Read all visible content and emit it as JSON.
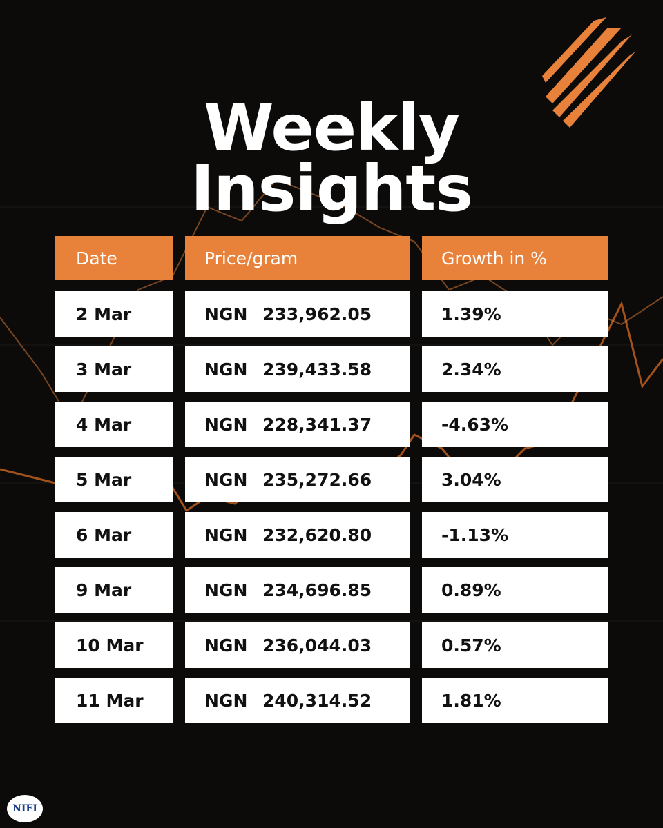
{
  "header": {
    "title_lines": [
      "Weekly",
      "Insights"
    ]
  },
  "table": {
    "columns": [
      "Date",
      "Price/gram",
      "Growth in %"
    ],
    "rows": [
      [
        "2 Mar",
        "NGN",
        "233,962.05",
        "1.39%"
      ],
      [
        "3 Mar",
        "NGN",
        "239,433.58",
        "2.34%"
      ],
      [
        "4 Mar",
        "NGN",
        "228,341.37",
        "-4.63%"
      ],
      [
        "5 Mar",
        "NGN",
        "235,272.66",
        "3.04%"
      ],
      [
        "6 Mar",
        "NGN",
        "232,620.80",
        "-1.13%"
      ],
      [
        "9 Mar",
        "NGN",
        "234,696.85",
        "0.89%"
      ],
      [
        "10 Mar",
        "NGN",
        "236,044.03",
        "0.57%"
      ],
      [
        "11 Mar",
        "NGN",
        "240,314.52",
        "1.81%"
      ]
    ]
  },
  "footer": {
    "logo": "NIFI"
  }
}
